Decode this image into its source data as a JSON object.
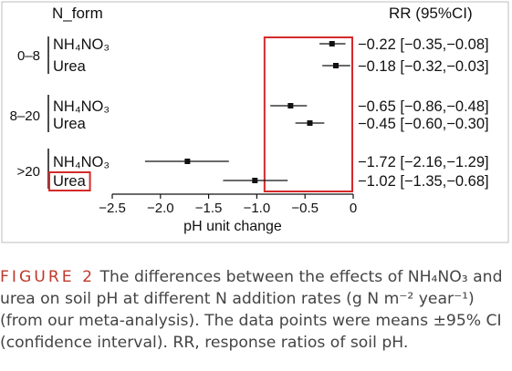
{
  "chart_data": {
    "type": "forest",
    "title": "",
    "xlabel": "pH unit change",
    "ylabel": "",
    "xlim": [
      -2.5,
      0
    ],
    "xticks": [
      "-2.5",
      "-2.0",
      "-1.5",
      "-1.0",
      "-0.5",
      "0"
    ],
    "group_header": "N_form",
    "rr_header": "RR (95%CI)",
    "groups": [
      {
        "label": "0–8",
        "rows": [
          {
            "form": "NH₄NO₃",
            "mean": -0.22,
            "lower": -0.35,
            "upper": -0.08,
            "rr_text": "−0.22 [−0.35,−0.08]"
          },
          {
            "form": "Urea",
            "mean": -0.18,
            "lower": -0.32,
            "upper": -0.03,
            "rr_text": "−0.18 [−0.32,−0.03]"
          }
        ]
      },
      {
        "label": "8–20",
        "rows": [
          {
            "form": "NH₄NO₃",
            "mean": -0.65,
            "lower": -0.86,
            "upper": -0.48,
            "rr_text": "−0.65 [−0.86,−0.48]"
          },
          {
            "form": "Urea",
            "mean": -0.45,
            "lower": -0.6,
            "upper": -0.3,
            "rr_text": "−0.45 [−0.60,−0.30]"
          }
        ]
      },
      {
        "label": ">20",
        "rows": [
          {
            "form": "NH₄NO₃",
            "mean": -1.72,
            "lower": -2.16,
            "upper": -1.29,
            "rr_text": "−1.72 [−2.16,−1.29]"
          },
          {
            "form": "Urea",
            "mean": -1.02,
            "lower": -1.35,
            "upper": -0.68,
            "rr_text": "−1.02 [−1.35,−0.68]",
            "highlighted": true
          }
        ]
      }
    ],
    "highlight_region_x": [
      -0.92,
      0
    ],
    "highlight_color": "#d42a2a"
  },
  "caption": {
    "figure_label": "FIGURE 2",
    "text": "The differences between the effects of NH₄NO₃ and urea on soil pH at different N addition rates (g N m⁻² year⁻¹) (from our meta-analysis). The data points were means ±95% CI (confidence interval). RR, response ratios of soil pH."
  }
}
